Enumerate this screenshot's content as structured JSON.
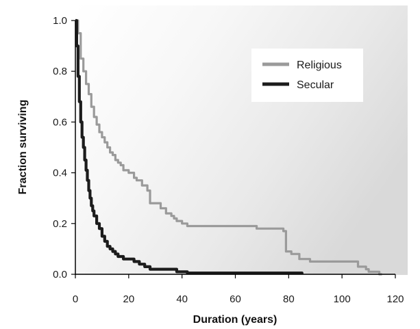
{
  "chart_data": {
    "type": "line",
    "xlabel": "Duration (years)",
    "ylabel": "Fraction surviving",
    "xlim": [
      0,
      120
    ],
    "ylim": [
      0,
      1.0
    ],
    "x_ticks": [
      "0",
      "20",
      "40",
      "60",
      "80",
      "100",
      "120"
    ],
    "y_ticks": [
      "0.0",
      "0.2",
      "0.4",
      "0.6",
      "0.8",
      "1.0"
    ],
    "x_tick_values": [
      0,
      20,
      40,
      60,
      80,
      100,
      120
    ],
    "y_tick_values": [
      0,
      0.2,
      0.4,
      0.6,
      0.8,
      1.0
    ],
    "legend_position": "top-right",
    "grid": false,
    "step": true,
    "series": [
      {
        "name": "Religious",
        "color": "#9a9a9a",
        "points": [
          [
            0,
            1.0
          ],
          [
            1,
            0.95
          ],
          [
            2,
            0.85
          ],
          [
            3,
            0.8
          ],
          [
            4,
            0.75
          ],
          [
            5,
            0.71
          ],
          [
            6,
            0.66
          ],
          [
            7,
            0.62
          ],
          [
            8,
            0.59
          ],
          [
            9,
            0.56
          ],
          [
            10,
            0.54
          ],
          [
            11,
            0.52
          ],
          [
            12,
            0.5
          ],
          [
            13,
            0.48
          ],
          [
            14,
            0.47
          ],
          [
            15,
            0.45
          ],
          [
            16,
            0.44
          ],
          [
            17,
            0.43
          ],
          [
            18,
            0.41
          ],
          [
            20,
            0.4
          ],
          [
            22,
            0.38
          ],
          [
            23,
            0.37
          ],
          [
            25,
            0.35
          ],
          [
            27,
            0.33
          ],
          [
            28,
            0.28
          ],
          [
            30,
            0.28
          ],
          [
            32,
            0.26
          ],
          [
            34,
            0.24
          ],
          [
            36,
            0.23
          ],
          [
            37,
            0.22
          ],
          [
            38,
            0.21
          ],
          [
            40,
            0.2
          ],
          [
            42,
            0.19
          ],
          [
            68,
            0.18
          ],
          [
            78,
            0.17
          ],
          [
            79,
            0.09
          ],
          [
            81,
            0.08
          ],
          [
            84,
            0.06
          ],
          [
            88,
            0.05
          ],
          [
            103,
            0.05
          ],
          [
            106,
            0.03
          ],
          [
            109,
            0.02
          ],
          [
            110,
            0.01
          ],
          [
            114,
            0.0
          ],
          [
            115,
            0.0
          ]
        ]
      },
      {
        "name": "Secular",
        "color": "#1c1c1c",
        "points": [
          [
            0,
            1.0
          ],
          [
            0.5,
            0.9
          ],
          [
            1,
            0.78
          ],
          [
            1.5,
            0.68
          ],
          [
            2,
            0.6
          ],
          [
            2.5,
            0.54
          ],
          [
            3,
            0.5
          ],
          [
            3.5,
            0.45
          ],
          [
            4,
            0.41
          ],
          [
            4.5,
            0.37
          ],
          [
            5,
            0.33
          ],
          [
            5.5,
            0.3
          ],
          [
            6,
            0.27
          ],
          [
            6.5,
            0.25
          ],
          [
            7,
            0.23
          ],
          [
            8,
            0.2
          ],
          [
            9,
            0.18
          ],
          [
            10,
            0.15
          ],
          [
            11,
            0.13
          ],
          [
            12,
            0.11
          ],
          [
            13,
            0.1
          ],
          [
            14,
            0.09
          ],
          [
            15,
            0.08
          ],
          [
            16,
            0.07
          ],
          [
            18,
            0.06
          ],
          [
            20,
            0.06
          ],
          [
            22,
            0.05
          ],
          [
            24,
            0.04
          ],
          [
            26,
            0.03
          ],
          [
            28,
            0.02
          ],
          [
            34,
            0.02
          ],
          [
            38,
            0.01
          ],
          [
            42,
            0.005
          ],
          [
            78,
            0.005
          ],
          [
            85,
            0.0
          ]
        ]
      }
    ]
  }
}
